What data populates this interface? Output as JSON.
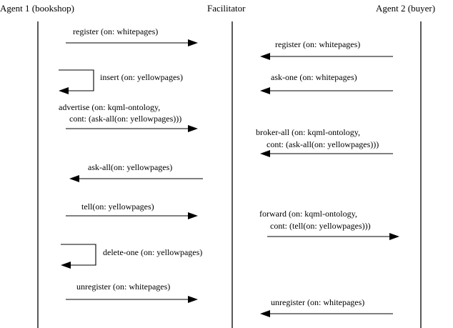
{
  "participants": {
    "agent1": "Agent 1 (bookshop)",
    "facilitator": "Facilitator",
    "agent2": "Agent 2 (buyer)"
  },
  "messages": {
    "a1_register": "register (on: whitepages)",
    "a1_insert": "insert (on: yellowpages)",
    "a1_advertise_l1": "advertise (on: kqml-ontology,",
    "a1_advertise_l2": "cont: (ask-all(on: yellowpages)))",
    "a1_askall": "ask-all(on: yellowpages)",
    "a1_tell": "tell(on: yellowpages)",
    "a1_deleteone": "delete-one (on: yellowpages)",
    "a1_unregister": "unregister (on: whitepages)",
    "a2_register": "register (on: whitepages)",
    "a2_askone": "ask-one (on: whitepages)",
    "a2_broker_l1": "broker-all (on: kqml-ontology,",
    "a2_broker_l2": "cont: (ask-all(on: yellowpages)))",
    "a2_forward_l1": "forward (on: kqml-ontology,",
    "a2_forward_l2": "cont: (tell(on: yellowpages)))",
    "a2_unregister": "unregister (on: whitepages)"
  }
}
